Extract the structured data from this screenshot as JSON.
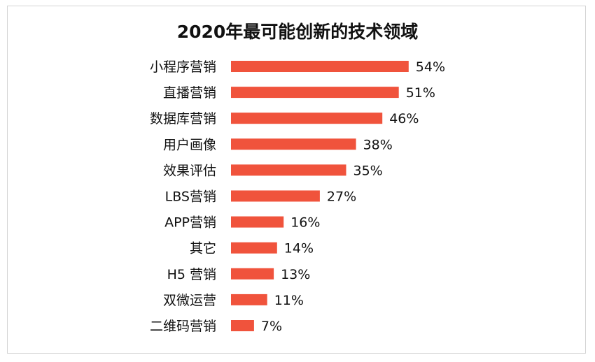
{
  "chart_data": {
    "type": "bar",
    "orientation": "horizontal",
    "title": "2020年最可能创新的技术领域",
    "categories": [
      "小程序营销",
      "直播营销",
      "数据库营销",
      "用户画像",
      "效果评估",
      "LBS营销",
      "APP营销",
      "其它",
      "H5 营销",
      "双微运营",
      "二维码营销"
    ],
    "values": [
      54,
      51,
      46,
      38,
      35,
      27,
      16,
      14,
      13,
      11,
      7
    ],
    "value_labels": [
      "54%",
      "51%",
      "46%",
      "38%",
      "35%",
      "27%",
      "16%",
      "14%",
      "13%",
      "11%",
      "7%"
    ],
    "unit": "%",
    "bar_color": "#f0533c",
    "grid": false,
    "legend": "none"
  }
}
